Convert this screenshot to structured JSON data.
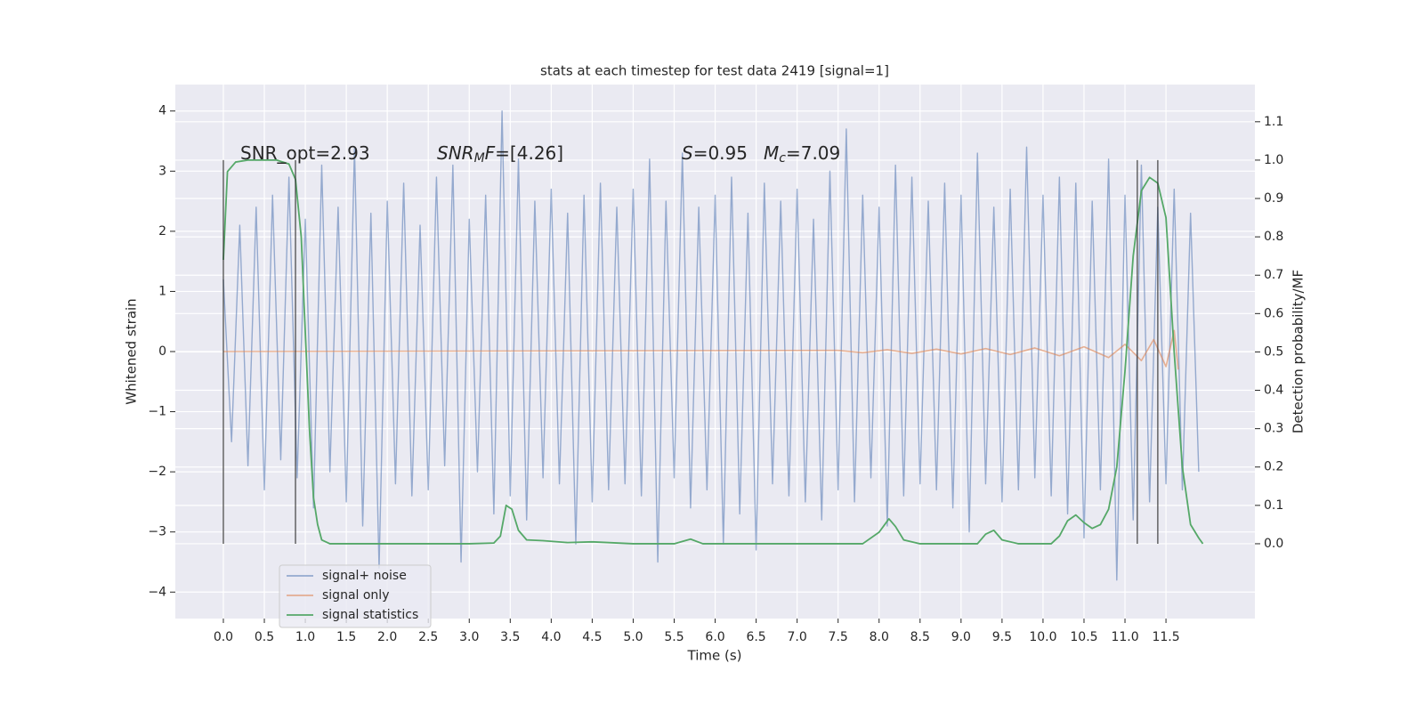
{
  "chart_data": {
    "type": "line",
    "title": "stats at each timestep for test data 2419 [signal=1]",
    "xlabel": "Time (s)",
    "ylabel": "Whitened strain",
    "y2label": "Detection probability/MF",
    "xlim": [
      -0.586,
      12.585
    ],
    "ylim": [
      -4.44,
      4.44
    ],
    "y2lim": [
      -0.195,
      1.197
    ],
    "xticks": [
      {
        "value": 0,
        "label": "0.0"
      },
      0.5,
      {
        "value": 1,
        "label": "1.0"
      },
      1.5,
      {
        "value": 2,
        "label": "2.0"
      },
      2.5,
      {
        "value": 3,
        "label": "3.0"
      },
      3.5,
      {
        "value": 4,
        "label": "4.0"
      },
      4.5,
      {
        "value": 5,
        "label": "5.0"
      },
      5.5,
      {
        "value": 6,
        "label": "6.0"
      },
      6.5,
      {
        "value": 7,
        "label": "7.0"
      },
      7.5,
      {
        "value": 8,
        "label": "8.0"
      },
      8.5,
      {
        "value": 9,
        "label": "9.0"
      },
      9.5,
      {
        "value": 10,
        "label": "10.0"
      },
      10.5,
      {
        "value": 11,
        "label": "11.0"
      },
      11.5
    ],
    "yticks": [
      {
        "value": -4,
        "label": "−4"
      },
      {
        "value": -3,
        "label": "−3"
      },
      {
        "value": -2,
        "label": "−2"
      },
      {
        "value": -1,
        "label": "−1"
      },
      0,
      1,
      2,
      3,
      4
    ],
    "y2ticks": [
      {
        "value": 0,
        "label": "0.0"
      },
      0.1,
      0.2,
      0.3,
      0.4,
      0.5,
      0.6,
      0.7,
      0.8,
      0.9,
      {
        "value": 1,
        "label": "1.0"
      },
      1.1
    ],
    "grid": true,
    "legend": "lower left",
    "series": [
      {
        "name": "signal+ noise",
        "color": "#4c72b0",
        "x": [
          0,
          0.1,
          0.2,
          0.3,
          0.4,
          0.5,
          0.6,
          0.7,
          0.8,
          0.9,
          1,
          1.1,
          1.2,
          1.3,
          1.4,
          1.5,
          1.6,
          1.7,
          1.8,
          1.9,
          2,
          2.1,
          2.2,
          2.3,
          2.4,
          2.5,
          2.6,
          2.7,
          2.8,
          2.9,
          3,
          3.1,
          3.2,
          3.3,
          3.4,
          3.5,
          3.6,
          3.7,
          3.8,
          3.9,
          4,
          4.1,
          4.2,
          4.3,
          4.4,
          4.5,
          4.6,
          4.7,
          4.8,
          4.9,
          5,
          5.1,
          5.2,
          5.3,
          5.4,
          5.5,
          5.6,
          5.7,
          5.8,
          5.9,
          6,
          6.1,
          6.2,
          6.3,
          6.4,
          6.5,
          6.6,
          6.7,
          6.8,
          6.9,
          7,
          7.1,
          7.2,
          7.3,
          7.4,
          7.5,
          7.6,
          7.7,
          7.8,
          7.9,
          8,
          8.1,
          8.2,
          8.3,
          8.4,
          8.5,
          8.6,
          8.7,
          8.8,
          8.9,
          9,
          9.1,
          9.2,
          9.3,
          9.4,
          9.5,
          9.6,
          9.7,
          9.8,
          9.9,
          10,
          10.1,
          10.2,
          10.3,
          10.4,
          10.5,
          10.6,
          10.7,
          10.8,
          10.9,
          11,
          11.1,
          11.2,
          11.3,
          11.4,
          11.5,
          11.6,
          11.7,
          11.8,
          11.9
        ],
        "values": [
          1.2,
          -1.5,
          2.1,
          -1.9,
          2.4,
          -2.3,
          2.6,
          -1.8,
          2.9,
          -2.1,
          2.2,
          -2.6,
          3.1,
          -2.0,
          2.4,
          -2.5,
          3.4,
          -2.9,
          2.3,
          -3.6,
          2.5,
          -2.2,
          2.8,
          -2.4,
          2.1,
          -2.3,
          2.9,
          -1.9,
          3.1,
          -3.5,
          2.2,
          -2.0,
          2.6,
          -2.7,
          4.0,
          -2.4,
          3.2,
          -2.8,
          2.5,
          -2.1,
          2.7,
          -2.2,
          2.3,
          -3.2,
          2.6,
          -2.5,
          2.8,
          -2.3,
          2.4,
          -2.2,
          2.7,
          -2.4,
          3.2,
          -3.5,
          2.5,
          -2.1,
          3.3,
          -2.6,
          2.4,
          -2.3,
          2.6,
          -3.2,
          2.9,
          -2.7,
          2.3,
          -3.3,
          2.8,
          -2.2,
          2.5,
          -2.4,
          2.7,
          -2.5,
          2.2,
          -2.8,
          3.0,
          -2.3,
          3.7,
          -2.5,
          2.6,
          -2.1,
          2.4,
          -2.9,
          3.1,
          -2.4,
          2.9,
          -2.2,
          2.5,
          -2.3,
          2.8,
          -2.6,
          2.6,
          -3.0,
          3.3,
          -2.2,
          2.4,
          -2.5,
          2.7,
          -2.3,
          3.4,
          -2.1,
          2.6,
          -2.4,
          2.9,
          -2.7,
          2.8,
          -3.1,
          2.5,
          -2.3,
          3.2,
          -3.8,
          2.6,
          -2.8,
          3.1,
          -2.5,
          2.4,
          -2.2,
          2.7,
          -2.3,
          2.3,
          -2.0
        ]
      },
      {
        "name": "signal only",
        "color": "#dd8452",
        "x": [
          0,
          7.5,
          7.8,
          8.1,
          8.4,
          8.7,
          9.0,
          9.3,
          9.6,
          9.9,
          10.2,
          10.5,
          10.8,
          11.0,
          11.2,
          11.35,
          11.5,
          11.6,
          11.65
        ],
        "values": [
          0,
          0.02,
          -0.02,
          0.03,
          -0.03,
          0.04,
          -0.04,
          0.05,
          -0.05,
          0.06,
          -0.07,
          0.08,
          -0.1,
          0.12,
          -0.15,
          0.2,
          -0.25,
          0.35,
          -0.3
        ]
      },
      {
        "name": "signal statistics",
        "color": "#55a868",
        "axis": "y2",
        "x": [
          0,
          0.05,
          0.15,
          0.3,
          0.5,
          0.65,
          0.8,
          0.88,
          0.95,
          1.0,
          1.05,
          1.1,
          1.15,
          1.2,
          1.3,
          1.5,
          2.0,
          2.5,
          3.0,
          3.3,
          3.38,
          3.45,
          3.52,
          3.6,
          3.7,
          3.9,
          4.2,
          4.5,
          5.0,
          5.5,
          5.7,
          5.85,
          6.5,
          7.5,
          7.8,
          8.0,
          8.12,
          8.2,
          8.3,
          8.5,
          9.2,
          9.3,
          9.4,
          9.5,
          9.7,
          10.1,
          10.2,
          10.3,
          10.4,
          10.5,
          10.6,
          10.7,
          10.8,
          10.9,
          11.0,
          11.1,
          11.2,
          11.3,
          11.4,
          11.5,
          11.6,
          11.7,
          11.8,
          11.9,
          11.95
        ],
        "values": [
          0.74,
          0.97,
          0.995,
          1.0,
          1.0,
          1.0,
          0.99,
          0.95,
          0.8,
          0.55,
          0.3,
          0.12,
          0.05,
          0.01,
          0.0,
          0.0,
          0.0,
          0.0,
          0.0,
          0.002,
          0.02,
          0.1,
          0.09,
          0.035,
          0.01,
          0.008,
          0.003,
          0.005,
          0.0,
          0.0,
          0.012,
          0.0,
          0.0,
          0.0,
          0.0,
          0.03,
          0.065,
          0.045,
          0.01,
          0.0,
          0.0,
          0.025,
          0.035,
          0.01,
          0.0,
          0.0,
          0.02,
          0.06,
          0.075,
          0.055,
          0.04,
          0.05,
          0.09,
          0.2,
          0.45,
          0.75,
          0.92,
          0.955,
          0.94,
          0.85,
          0.5,
          0.2,
          0.05,
          0.015,
          0.0
        ]
      }
    ],
    "vlines": [
      0,
      0.88,
      11.15,
      11.4
    ],
    "vline_span": [
      0,
      1
    ],
    "annotations": [
      {
        "parts": [
          {
            "text": "SNR_opt=2.93"
          }
        ]
      },
      {
        "parts": [
          {
            "text": "SNR",
            "italic": true
          },
          {
            "text": "M",
            "italic": true,
            "sub": true
          },
          {
            "text": "F",
            "italic": true
          },
          {
            "text": "=[4.26]"
          }
        ]
      },
      {
        "parts": [
          {
            "text": "S",
            "italic": true
          },
          {
            "text": "=0.95"
          }
        ]
      },
      {
        "parts": [
          {
            "text": "M",
            "italic": true
          },
          {
            "text": "c",
            "italic": true,
            "sub": true
          },
          {
            "text": "=7.09"
          }
        ]
      }
    ]
  }
}
